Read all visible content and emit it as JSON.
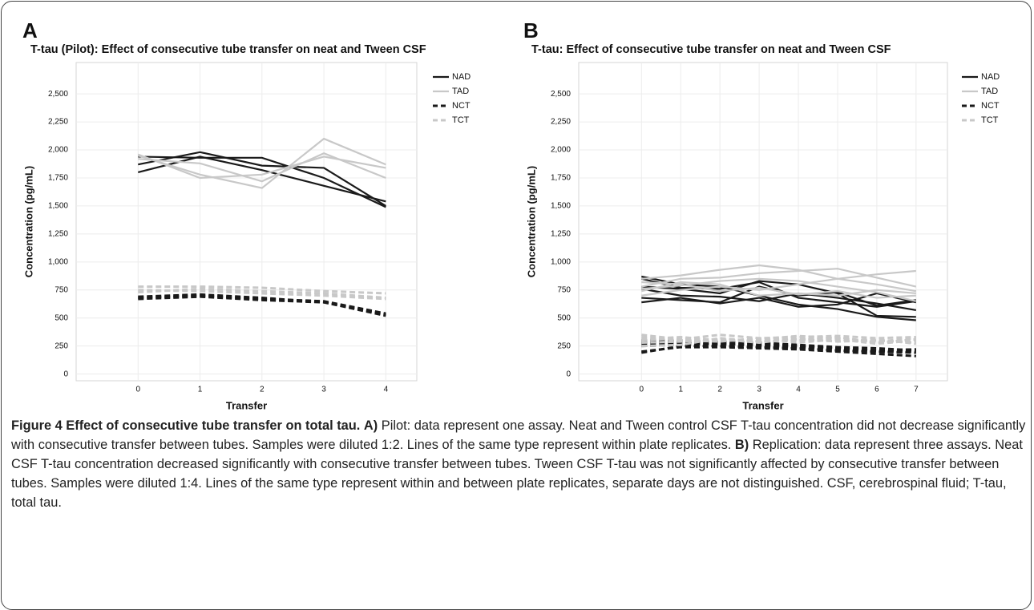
{
  "chart_data": [
    {
      "type": "line",
      "panel": "A",
      "title": "T-tau (Pilot): Effect of consecutive tube transfer on neat and Tween CSF",
      "x_label": "Transfer",
      "y_label": "Concentration (pg/mL)",
      "x": [
        0,
        1,
        2,
        3,
        4
      ],
      "xlim": [
        -1,
        4.5
      ],
      "xticks": [
        0,
        1,
        2,
        3,
        4
      ],
      "ylim": [
        -60,
        2780
      ],
      "yticks": [
        0,
        250,
        500,
        750,
        {
          "value": 1000,
          "label": "1,000"
        },
        {
          "value": 1250,
          "label": "1,250"
        },
        {
          "value": 1500,
          "label": "1,500"
        },
        {
          "value": 1750,
          "label": "1,750"
        },
        {
          "value": 2000,
          "label": "2,000"
        },
        {
          "value": 2250,
          "label": "2,250"
        },
        {
          "value": 2500,
          "label": "2,500"
        }
      ],
      "grid": true,
      "series": [
        {
          "name": "NAD",
          "color": "#1a1a1a",
          "dashed": false,
          "lines": [
            [
              1940,
              1930,
              1930,
              1750,
              1490
            ],
            [
              1870,
              1980,
              1860,
              1840,
              1500
            ],
            [
              1800,
              1940,
              1820,
              1680,
              1540
            ]
          ]
        },
        {
          "name": "TAD",
          "color": "#c8c8c8",
          "dashed": false,
          "lines": [
            [
              1950,
              1780,
              1660,
              2100,
              1870
            ],
            [
              1920,
              1880,
              1720,
              1970,
              1750
            ],
            [
              1960,
              1750,
              1780,
              1940,
              1840
            ]
          ]
        },
        {
          "name": "NCT",
          "color": "#1a1a1a",
          "dashed": true,
          "lines": [
            [
              670,
              690,
              660,
              640,
              520
            ],
            [
              680,
              700,
              670,
              650,
              540
            ],
            [
              690,
              710,
              680,
              640,
              530
            ]
          ]
        },
        {
          "name": "TCT",
          "color": "#c8c8c8",
          "dashed": true,
          "lines": [
            [
              780,
              780,
              770,
              740,
              720
            ],
            [
              730,
              760,
              740,
              720,
              680
            ],
            [
              750,
              740,
              720,
              700,
              670
            ]
          ]
        }
      ]
    },
    {
      "type": "line",
      "panel": "B",
      "title": "T-tau: Effect of consecutive tube transfer on neat and Tween CSF",
      "x_label": "Transfer",
      "y_label": "Concentration (pg/mL)",
      "x": [
        0,
        1,
        2,
        3,
        4,
        5,
        6,
        7
      ],
      "xlim": [
        -1.6,
        7.8
      ],
      "xticks": [
        0,
        1,
        2,
        3,
        4,
        5,
        6,
        7
      ],
      "ylim": [
        -60,
        2780
      ],
      "yticks": [
        0,
        250,
        500,
        750,
        {
          "value": 1000,
          "label": "1,000"
        },
        {
          "value": 1250,
          "label": "1,250"
        },
        {
          "value": 1500,
          "label": "1,500"
        },
        {
          "value": 1750,
          "label": "1,750"
        },
        {
          "value": 2000,
          "label": "2,000"
        },
        {
          "value": 2250,
          "label": "2,250"
        },
        {
          "value": 2500,
          "label": "2,500"
        }
      ],
      "grid": true,
      "series": [
        {
          "name": "NAD",
          "color": "#1a1a1a",
          "dashed": false,
          "lines": [
            [
              870,
              800,
              780,
              700,
              620,
              580,
              510,
              480
            ],
            [
              780,
              760,
              720,
              830,
              800,
              720,
              520,
              510
            ],
            [
              640,
              680,
              630,
              680,
              600,
              620,
              720,
              640
            ],
            [
              760,
              700,
              690,
              650,
              720,
              680,
              630,
              570
            ],
            [
              680,
              660,
              640,
              780,
              700,
              730,
              610,
              660
            ],
            [
              850,
              770,
              760,
              820,
              680,
              640,
              600,
              650
            ]
          ]
        },
        {
          "name": "TAD",
          "color": "#c8c8c8",
          "dashed": false,
          "lines": [
            [
              850,
              880,
              930,
              970,
              930,
              850,
              800,
              740
            ],
            [
              780,
              850,
              860,
              900,
              920,
              940,
              860,
              780
            ],
            [
              700,
              750,
              780,
              750,
              800,
              850,
              890,
              920
            ],
            [
              820,
              800,
              740,
              770,
              710,
              740,
              680,
              700
            ],
            [
              740,
              820,
              800,
              700,
              720,
              700,
              750,
              720
            ],
            [
              760,
              790,
              830,
              850,
              830,
              780,
              730,
              650
            ]
          ]
        },
        {
          "name": "NCT",
          "color": "#1a1a1a",
          "dashed": true,
          "lines": [
            [
              200,
              240,
              240,
              230,
              220,
              200,
              180,
              160
            ],
            [
              280,
              290,
              280,
              260,
              250,
              220,
              200,
              200
            ],
            [
              250,
              260,
              270,
              250,
              240,
              230,
              210,
              220
            ],
            [
              190,
              250,
              250,
              240,
              230,
              210,
              200,
              190
            ],
            [
              300,
              300,
              290,
              280,
              260,
              240,
              230,
              210
            ],
            [
              270,
              280,
              260,
              270,
              250,
              230,
              210,
              220
            ]
          ]
        },
        {
          "name": "TCT",
          "color": "#c8c8c8",
          "dashed": true,
          "lines": [
            [
              350,
              310,
              350,
              320,
              330,
              340,
              320,
              330
            ],
            [
              300,
              320,
              300,
              300,
              310,
              290,
              300,
              280
            ],
            [
              250,
              260,
              320,
              290,
              300,
              330,
              280,
              310
            ],
            [
              330,
              300,
              290,
              320,
              280,
              310,
              270,
              300
            ],
            [
              280,
              290,
              310,
              280,
              320,
              300,
              310,
              270
            ],
            [
              310,
              330,
              300,
              310,
              340,
              320,
              290,
              320
            ]
          ]
        }
      ]
    }
  ],
  "caption": {
    "title": "Figure 4 Effect of consecutive tube transfer on total tau.",
    "parts": [
      {
        "label": "A)",
        "text": "Pilot: data represent one assay. Neat and Tween control CSF T-tau concentration did not decrease significantly with consecutive transfer between tubes. Samples were diluted 1:2. Lines of the same type represent within plate replicates."
      },
      {
        "label": "B)",
        "text": "Replication: data represent three assays. Neat CSF T-tau concentration decreased significantly with consecutive transfer between tubes. Tween CSF T-tau was not significantly affected by consecutive transfer between tubes. Samples were diluted 1:4. Lines of the same type represent within and between plate replicates, separate days are not distinguished. CSF, cerebrospinal fluid; T-tau, total tau."
      }
    ]
  }
}
